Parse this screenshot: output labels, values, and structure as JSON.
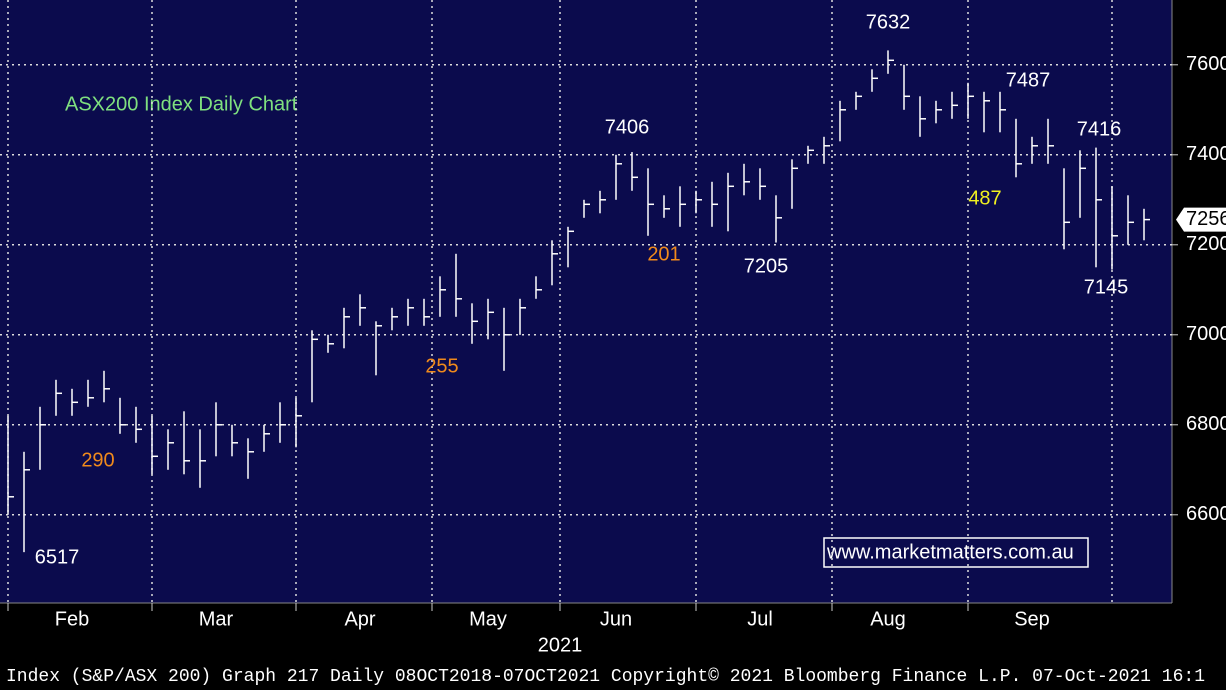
{
  "chart_data": {
    "type": "hlc",
    "title": "ASX200 Index Daily Chart",
    "watermark": "www.marketmatters.com.au",
    "footer": "Index (S&P/ASX 200) Graph 217  Daily 08OCT2018-07OCT2021 Copyright© 2021 Bloomberg Finance L.P. 07-Oct-2021 16:1",
    "year_label": "2021",
    "categories": [
      null,
      null,
      null,
      null,
      "Feb",
      null,
      null,
      null,
      null,
      null,
      null,
      null,
      null,
      "Mar",
      null,
      null,
      null,
      null,
      null,
      null,
      null,
      null,
      "Apr",
      null,
      null,
      null,
      null,
      null,
      null,
      null,
      "May",
      null,
      null,
      null,
      null,
      null,
      null,
      null,
      "Jun",
      null,
      null,
      null,
      null,
      null,
      null,
      null,
      null,
      "Jul",
      null,
      null,
      null,
      null,
      null,
      null,
      null,
      "Aug",
      null,
      null,
      null,
      null,
      null,
      null,
      null,
      null,
      "Sep",
      null,
      null,
      null,
      null,
      null,
      null,
      null
    ],
    "high": [
      6820,
      6740,
      6840,
      6900,
      6880,
      6900,
      6920,
      6860,
      6840,
      6820,
      6790,
      6830,
      6790,
      6850,
      6800,
      6770,
      6800,
      6850,
      6860,
      7010,
      7000,
      7060,
      7090,
      7030,
      7060,
      7080,
      7080,
      7130,
      7180,
      7070,
      7080,
      7060,
      7080,
      7130,
      7210,
      7240,
      7300,
      7320,
      7400,
      7406,
      7370,
      7310,
      7330,
      7320,
      7340,
      7360,
      7380,
      7370,
      7310,
      7390,
      7420,
      7440,
      7520,
      7540,
      7590,
      7632,
      7600,
      7530,
      7520,
      7540,
      7560,
      7540,
      7540,
      7480,
      7440,
      7480,
      7370,
      7410,
      7416,
      7330,
      7310,
      7280
    ],
    "low": [
      6600,
      6517,
      6700,
      6820,
      6820,
      6840,
      6850,
      6780,
      6760,
      6690,
      6700,
      6690,
      6660,
      6730,
      6730,
      6680,
      6740,
      6760,
      6750,
      6850,
      6960,
      6970,
      7020,
      6910,
      7010,
      7020,
      7020,
      7040,
      7040,
      6980,
      6990,
      6920,
      7000,
      7080,
      7110,
      7150,
      7260,
      7270,
      7300,
      7320,
      7220,
      7260,
      7240,
      7270,
      7240,
      7230,
      7310,
      7300,
      7205,
      7280,
      7380,
      7380,
      7430,
      7500,
      7540,
      7580,
      7500,
      7440,
      7470,
      7480,
      7480,
      7450,
      7450,
      7350,
      7380,
      7380,
      7190,
      7260,
      7150,
      7145,
      7200,
      7210
    ],
    "close": [
      6640,
      6700,
      6800,
      6870,
      6850,
      6860,
      6880,
      6800,
      6790,
      6730,
      6760,
      6720,
      6720,
      6800,
      6760,
      6740,
      6780,
      6800,
      6820,
      6990,
      6980,
      7040,
      7060,
      7020,
      7040,
      7060,
      7040,
      7100,
      7080,
      7030,
      7050,
      7000,
      7060,
      7100,
      7180,
      7230,
      7290,
      7300,
      7380,
      7350,
      7290,
      7280,
      7290,
      7300,
      7290,
      7330,
      7340,
      7330,
      7260,
      7370,
      7410,
      7420,
      7500,
      7530,
      7570,
      7610,
      7530,
      7480,
      7500,
      7510,
      7530,
      7520,
      7500,
      7380,
      7420,
      7420,
      7250,
      7370,
      7300,
      7220,
      7250,
      7256
    ],
    "color": "#ffffff",
    "last_value": 7256,
    "ylim": [
      6404,
      7744
    ],
    "yticks": [
      6600,
      6800,
      7000,
      7200,
      7400,
      7600
    ],
    "grid": true,
    "annotations": [
      {
        "text": "6517",
        "color": "#ffffff"
      },
      {
        "text": "290",
        "color": "#f08a1c"
      },
      {
        "text": "255",
        "color": "#f08a1c"
      },
      {
        "text": "7406",
        "color": "#ffffff"
      },
      {
        "text": "201",
        "color": "#f08a1c"
      },
      {
        "text": "7205",
        "color": "#ffffff"
      },
      {
        "text": "7632",
        "color": "#ffffff"
      },
      {
        "text": "487",
        "color": "#f0f020"
      },
      {
        "text": "7487",
        "color": "#ffffff"
      },
      {
        "text": "7416",
        "color": "#ffffff"
      },
      {
        "text": "7145",
        "color": "#ffffff"
      }
    ]
  }
}
